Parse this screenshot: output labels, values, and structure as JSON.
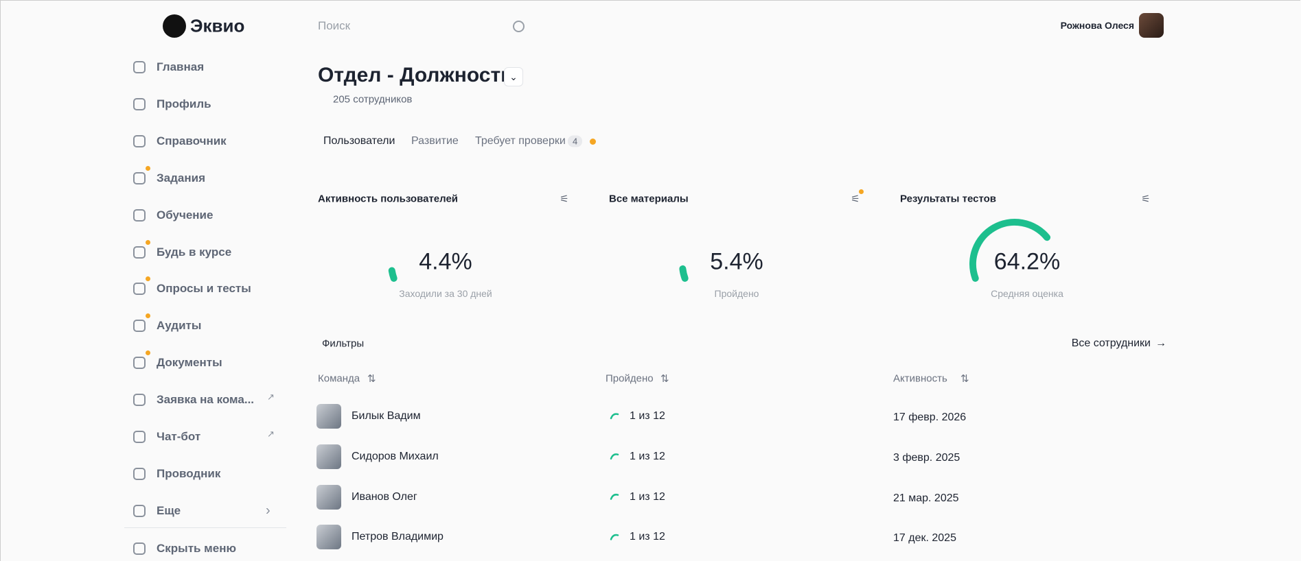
{
  "header": {
    "logo": "Эквио",
    "search_placeholder": "Поиск",
    "user_name": "Рожнова Олеся"
  },
  "sidebar": {
    "items": [
      {
        "label": "Главная"
      },
      {
        "label": "Профиль"
      },
      {
        "label": "Справочник"
      },
      {
        "label": "Задания",
        "dot": true
      },
      {
        "label": "Обучение"
      },
      {
        "label": "Будь в курсе",
        "dot": true
      },
      {
        "label": "Опросы и тесты",
        "dot": true
      },
      {
        "label": "Аудиты",
        "dot": true
      },
      {
        "label": "Документы",
        "dot": true
      },
      {
        "label": "Заявка на кома...",
        "external": true
      },
      {
        "label": "Чат-бот",
        "external": true
      },
      {
        "label": "Проводник"
      },
      {
        "label": "Еще",
        "more": true
      }
    ],
    "hide": "Скрыть меню"
  },
  "page": {
    "title": "Отдел - Должность",
    "employees": "205 сотрудников"
  },
  "tabs": [
    {
      "label": "Пользователи"
    },
    {
      "label": "Развитие"
    },
    {
      "label": "Требует проверки",
      "badge": "4"
    }
  ],
  "cards": [
    {
      "title": "Активность пользователей",
      "value": 4.4,
      "label": "4.4%",
      "caption": "Заходили за 30 дней"
    },
    {
      "title": "Все материалы",
      "value": 5.4,
      "label": "5.4%",
      "caption": "Пройдено",
      "dot": true
    },
    {
      "title": "Результаты тестов",
      "value": 64.2,
      "label": "64.2%",
      "caption": "Средняя оценка"
    }
  ],
  "filters": "Фильтры",
  "all_employees": "Все сотрудники",
  "table": {
    "columns": [
      "Команда",
      "Пройдено",
      "Активность"
    ],
    "rows": [
      [
        "Билык Вадим",
        "1 из 12",
        "17 февр. 2026"
      ],
      [
        "Сидоров Михаил",
        "1 из 12",
        "3 февр. 2025"
      ],
      [
        "Иванов Олег",
        "1 из 12",
        "21 мар. 2025"
      ],
      [
        "Петров Владимир",
        "1 из 12",
        "17 дек. 2025"
      ]
    ]
  }
}
